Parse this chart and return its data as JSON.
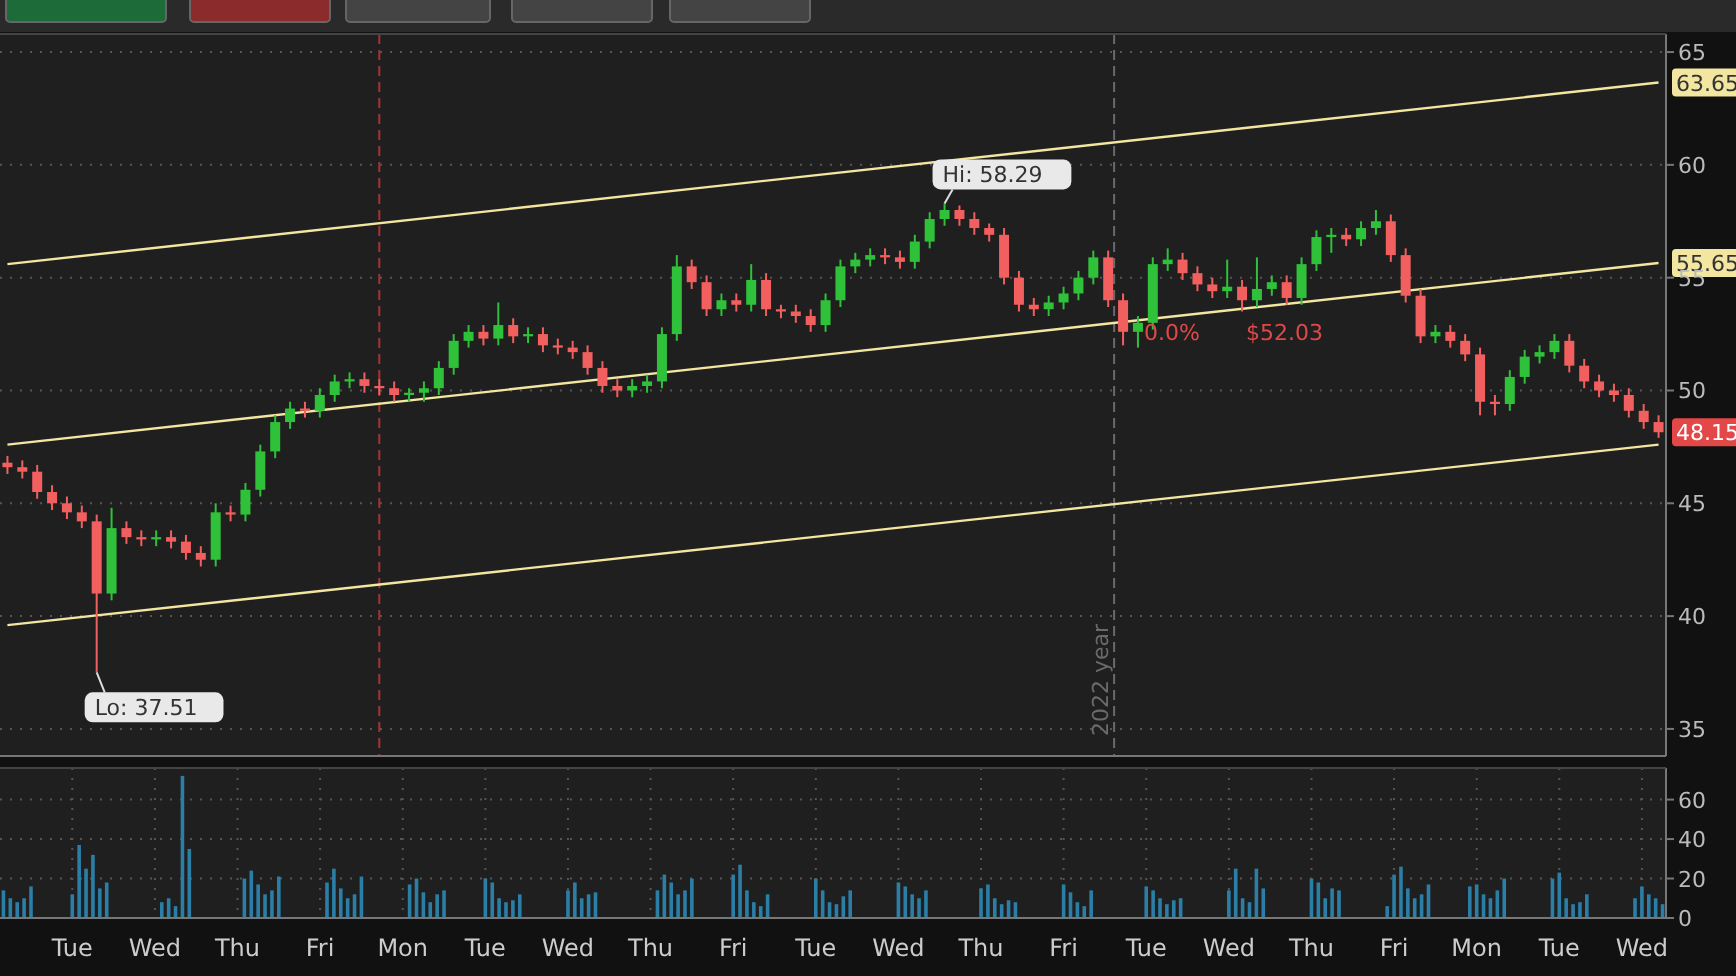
{
  "chart_data": [
    {
      "type": "candlestick",
      "categories": [
        null,
        null,
        null,
        null,
        null,
        null,
        null,
        null,
        null,
        null,
        null,
        null,
        null,
        null,
        null,
        null,
        null,
        null,
        null,
        null,
        null,
        null,
        null,
        null,
        null,
        null,
        null,
        null,
        null,
        null,
        null,
        null,
        null,
        null,
        null,
        null,
        null,
        null,
        null,
        null,
        null,
        null,
        null,
        null,
        null,
        null,
        null,
        null,
        null,
        null,
        null,
        null,
        null,
        null,
        null,
        null,
        null,
        null,
        null,
        null,
        null,
        null,
        null,
        null,
        null,
        null,
        null,
        null,
        null,
        null,
        null,
        null,
        null,
        null,
        null,
        null,
        null,
        null,
        null,
        null,
        null,
        null,
        null,
        null,
        null,
        null,
        null,
        null,
        null,
        null,
        null,
        null,
        null,
        null,
        null,
        null,
        null,
        null,
        null,
        null,
        null,
        null,
        null,
        null,
        null,
        null,
        null,
        null,
        null,
        null,
        null,
        null
      ],
      "ohlc": [
        [
          46.8,
          47.1,
          46.3,
          46.6
        ],
        [
          46.6,
          46.9,
          46.1,
          46.4
        ],
        [
          46.4,
          46.7,
          45.2,
          45.5
        ],
        [
          45.5,
          45.8,
          44.7,
          45.0
        ],
        [
          45.0,
          45.3,
          44.3,
          44.6
        ],
        [
          44.6,
          44.9,
          43.9,
          44.2
        ],
        [
          44.2,
          44.5,
          37.51,
          41.0
        ],
        [
          41.0,
          44.8,
          40.7,
          43.9
        ],
        [
          43.9,
          44.2,
          43.2,
          43.5
        ],
        [
          43.5,
          43.8,
          43.1,
          43.4
        ],
        [
          43.4,
          43.8,
          43.1,
          43.5
        ],
        [
          43.5,
          43.8,
          43.0,
          43.3
        ],
        [
          43.3,
          43.6,
          42.5,
          42.8
        ],
        [
          42.8,
          43.1,
          42.2,
          42.5
        ],
        [
          42.5,
          45.0,
          42.2,
          44.6
        ],
        [
          44.6,
          44.9,
          44.2,
          44.5
        ],
        [
          44.5,
          45.9,
          44.2,
          45.6
        ],
        [
          45.6,
          47.6,
          45.3,
          47.3
        ],
        [
          47.3,
          48.9,
          47.0,
          48.6
        ],
        [
          48.6,
          49.5,
          48.3,
          49.2
        ],
        [
          49.2,
          49.5,
          48.8,
          49.1
        ],
        [
          49.1,
          50.1,
          48.8,
          49.8
        ],
        [
          49.8,
          50.7,
          49.5,
          50.4
        ],
        [
          50.4,
          50.8,
          50.1,
          50.5
        ],
        [
          50.5,
          50.8,
          49.9,
          50.2
        ],
        [
          50.2,
          50.5,
          49.8,
          50.1
        ],
        [
          50.1,
          50.4,
          49.5,
          49.8
        ],
        [
          49.8,
          50.1,
          49.5,
          49.9
        ],
        [
          49.9,
          50.4,
          49.5,
          50.1
        ],
        [
          50.1,
          51.3,
          49.8,
          51.0
        ],
        [
          51.0,
          52.5,
          50.7,
          52.2
        ],
        [
          52.2,
          52.9,
          51.9,
          52.6
        ],
        [
          52.6,
          52.9,
          52.0,
          52.3
        ],
        [
          52.3,
          53.9,
          52.0,
          52.9
        ],
        [
          52.9,
          53.2,
          52.1,
          52.4
        ],
        [
          52.4,
          52.8,
          52.1,
          52.5
        ],
        [
          52.5,
          52.8,
          51.7,
          52.0
        ],
        [
          52.0,
          52.3,
          51.6,
          51.9
        ],
        [
          51.9,
          52.2,
          51.4,
          51.7
        ],
        [
          51.7,
          52.0,
          50.7,
          51.0
        ],
        [
          51.0,
          51.3,
          49.9,
          50.2
        ],
        [
          50.2,
          50.5,
          49.7,
          50.0
        ],
        [
          50.0,
          50.5,
          49.7,
          50.2
        ],
        [
          50.2,
          50.7,
          49.9,
          50.4
        ],
        [
          50.4,
          52.8,
          50.1,
          52.5
        ],
        [
          52.5,
          56.0,
          52.2,
          55.5
        ],
        [
          55.5,
          55.8,
          54.5,
          54.8
        ],
        [
          54.8,
          55.1,
          53.3,
          53.6
        ],
        [
          53.6,
          54.3,
          53.3,
          54.0
        ],
        [
          54.0,
          54.3,
          53.5,
          53.8
        ],
        [
          53.8,
          55.6,
          53.5,
          54.9
        ],
        [
          54.9,
          55.2,
          53.3,
          53.6
        ],
        [
          53.6,
          53.8,
          53.2,
          53.5
        ],
        [
          53.5,
          53.8,
          53.0,
          53.3
        ],
        [
          53.3,
          53.6,
          52.6,
          52.9
        ],
        [
          52.9,
          54.3,
          52.6,
          54.0
        ],
        [
          54.0,
          55.8,
          53.7,
          55.5
        ],
        [
          55.5,
          56.1,
          55.2,
          55.8
        ],
        [
          55.8,
          56.3,
          55.5,
          56.0
        ],
        [
          56.0,
          56.3,
          55.6,
          55.9
        ],
        [
          55.9,
          56.2,
          55.4,
          55.7
        ],
        [
          55.7,
          56.9,
          55.4,
          56.6
        ],
        [
          56.6,
          57.9,
          56.3,
          57.6
        ],
        [
          57.6,
          58.29,
          57.3,
          58.0
        ],
        [
          58.0,
          58.2,
          57.3,
          57.6
        ],
        [
          57.6,
          57.9,
          56.9,
          57.2
        ],
        [
          57.2,
          57.4,
          56.6,
          56.9
        ],
        [
          56.9,
          57.2,
          54.7,
          55.0
        ],
        [
          55.0,
          55.3,
          53.5,
          53.8
        ],
        [
          53.8,
          54.1,
          53.3,
          53.6
        ],
        [
          53.6,
          54.2,
          53.3,
          53.9
        ],
        [
          53.9,
          54.6,
          53.6,
          54.3
        ],
        [
          54.3,
          55.3,
          54.0,
          55.0
        ],
        [
          55.0,
          56.2,
          54.7,
          55.9
        ],
        [
          55.9,
          56.2,
          53.7,
          54.0
        ],
        [
          54.0,
          54.3,
          52.0,
          52.6
        ],
        [
          52.6,
          53.3,
          51.9,
          53.0
        ],
        [
          53.0,
          55.9,
          52.7,
          55.6
        ],
        [
          55.6,
          56.3,
          55.3,
          55.8
        ],
        [
          55.8,
          56.1,
          54.9,
          55.2
        ],
        [
          55.2,
          55.5,
          54.4,
          54.7
        ],
        [
          54.7,
          55.0,
          54.1,
          54.4
        ],
        [
          54.4,
          55.8,
          54.1,
          54.6
        ],
        [
          54.6,
          54.9,
          53.5,
          54.0
        ],
        [
          54.0,
          55.9,
          53.7,
          54.5
        ],
        [
          54.5,
          55.1,
          54.2,
          54.8
        ],
        [
          54.8,
          55.1,
          53.8,
          54.1
        ],
        [
          54.1,
          55.9,
          53.8,
          55.6
        ],
        [
          55.6,
          57.1,
          55.3,
          56.8
        ],
        [
          56.8,
          57.2,
          56.1,
          56.9
        ],
        [
          56.9,
          57.2,
          56.4,
          56.7
        ],
        [
          56.7,
          57.5,
          56.4,
          57.2
        ],
        [
          57.2,
          58.0,
          56.9,
          57.5
        ],
        [
          57.5,
          57.8,
          55.7,
          56.0
        ],
        [
          56.0,
          56.3,
          53.9,
          54.2
        ],
        [
          54.2,
          54.5,
          52.1,
          52.4
        ],
        [
          52.4,
          52.9,
          52.1,
          52.6
        ],
        [
          52.6,
          52.9,
          51.9,
          52.2
        ],
        [
          52.2,
          52.5,
          51.3,
          51.6
        ],
        [
          51.6,
          51.9,
          48.9,
          49.5
        ],
        [
          49.5,
          49.8,
          48.9,
          49.4
        ],
        [
          49.4,
          50.9,
          49.1,
          50.6
        ],
        [
          50.6,
          51.8,
          50.3,
          51.5
        ],
        [
          51.5,
          52.0,
          51.2,
          51.7
        ],
        [
          51.7,
          52.5,
          51.4,
          52.2
        ],
        [
          52.2,
          52.5,
          50.8,
          51.1
        ],
        [
          51.1,
          51.4,
          50.1,
          50.4
        ],
        [
          50.4,
          50.7,
          49.7,
          50.0
        ],
        [
          50.0,
          50.3,
          49.5,
          49.8
        ],
        [
          49.8,
          50.1,
          48.8,
          49.1
        ],
        [
          49.1,
          49.4,
          48.3,
          48.6
        ],
        [
          48.6,
          48.9,
          47.9,
          48.15
        ]
      ],
      "series": [
        {
          "type": "line",
          "color": "#f3e6a0",
          "values": [
            55.6,
            null,
            null,
            null,
            null,
            null,
            null,
            null,
            null,
            null,
            null,
            null,
            null,
            null,
            null,
            null,
            null,
            null,
            null,
            null,
            null,
            null,
            null,
            null,
            null,
            null,
            null,
            null,
            null,
            null,
            null,
            null,
            null,
            null,
            null,
            null,
            null,
            null,
            null,
            null,
            null,
            null,
            null,
            null,
            null,
            null,
            null,
            null,
            null,
            null,
            null,
            null,
            null,
            null,
            null,
            null,
            null,
            null,
            null,
            null,
            null,
            null,
            null,
            null,
            null,
            null,
            null,
            null,
            null,
            null,
            null,
            null,
            null,
            null,
            null,
            null,
            null,
            null,
            null,
            null,
            null,
            null,
            null,
            null,
            null,
            null,
            null,
            null,
            null,
            null,
            null,
            null,
            null,
            null,
            null,
            null,
            null,
            null,
            null,
            null,
            null,
            null,
            null,
            null,
            null,
            null,
            null,
            null,
            null,
            null,
            null,
            63.65
          ]
        },
        {
          "type": "line",
          "color": "#f3e6a0",
          "values": [
            47.6,
            null,
            null,
            null,
            null,
            null,
            null,
            null,
            null,
            null,
            null,
            null,
            null,
            null,
            null,
            null,
            null,
            null,
            null,
            null,
            null,
            null,
            null,
            null,
            null,
            null,
            null,
            null,
            null,
            null,
            null,
            null,
            null,
            null,
            null,
            null,
            null,
            null,
            null,
            null,
            null,
            null,
            null,
            null,
            null,
            null,
            null,
            null,
            null,
            null,
            null,
            null,
            null,
            null,
            null,
            null,
            null,
            null,
            null,
            null,
            null,
            null,
            null,
            null,
            null,
            null,
            null,
            null,
            null,
            null,
            null,
            null,
            null,
            null,
            null,
            null,
            null,
            null,
            null,
            null,
            null,
            null,
            null,
            null,
            null,
            null,
            null,
            null,
            null,
            null,
            null,
            null,
            null,
            null,
            null,
            null,
            null,
            null,
            null,
            null,
            null,
            null,
            null,
            null,
            null,
            null,
            null,
            null,
            null,
            null,
            null,
            55.65
          ]
        },
        {
          "type": "line",
          "color": "#f3e6a0",
          "values": [
            39.6,
            null,
            null,
            null,
            null,
            null,
            null,
            null,
            null,
            null,
            null,
            null,
            null,
            null,
            null,
            null,
            null,
            null,
            null,
            null,
            null,
            null,
            null,
            null,
            null,
            null,
            null,
            null,
            null,
            null,
            null,
            null,
            null,
            null,
            null,
            null,
            null,
            null,
            null,
            null,
            null,
            null,
            null,
            null,
            null,
            null,
            null,
            null,
            null,
            null,
            null,
            null,
            null,
            null,
            null,
            null,
            null,
            null,
            null,
            null,
            null,
            null,
            null,
            null,
            null,
            null,
            null,
            null,
            null,
            null,
            null,
            null,
            null,
            null,
            null,
            null,
            null,
            null,
            null,
            null,
            null,
            null,
            null,
            null,
            null,
            null,
            null,
            null,
            null,
            null,
            null,
            null,
            null,
            null,
            null,
            null,
            null,
            null,
            null,
            null,
            null,
            null,
            null,
            null,
            null,
            null,
            null,
            null,
            null,
            null,
            null,
            47.6
          ]
        }
      ],
      "ylim": [
        33.8,
        65.8
      ],
      "yticks": [
        35,
        40,
        45,
        50,
        55,
        60,
        65
      ],
      "grid": "y",
      "tick_labels": "y",
      "annotations": [
        "Hi: 58.29",
        "Lo: 37.51",
        "0.0%",
        "$52.03",
        {
          "text": "48.15",
          "y": 48.15
        },
        {
          "text": "63.65",
          "y": 63.65
        },
        {
          "text": "55.65",
          "y": 55.65
        },
        "2022 year"
      ]
    },
    {
      "type": "bar",
      "color": "#2b7ea6",
      "categories": [
        null,
        null,
        null,
        null,
        null,
        null,
        null,
        null,
        null,
        null,
        "Tue",
        null,
        null,
        null,
        null,
        null,
        null,
        null,
        null,
        null,
        null,
        null,
        "Wed",
        null,
        null,
        null,
        null,
        null,
        null,
        null,
        null,
        null,
        null,
        null,
        "Thu",
        null,
        null,
        null,
        null,
        null,
        null,
        null,
        null,
        null,
        null,
        null,
        "Fri",
        null,
        null,
        null,
        null,
        null,
        null,
        null,
        null,
        null,
        null,
        null,
        "Mon",
        null,
        null,
        null,
        null,
        null,
        null,
        null,
        null,
        null,
        null,
        null,
        "Tue",
        null,
        null,
        null,
        null,
        null,
        null,
        null,
        null,
        null,
        null,
        null,
        "Wed",
        null,
        null,
        null,
        null,
        null,
        null,
        null,
        null,
        null,
        null,
        null,
        "Thu",
        null,
        null,
        null,
        null,
        null,
        null,
        null,
        null,
        null,
        null,
        null,
        "Fri",
        null,
        null,
        null,
        null,
        null,
        null,
        null,
        null,
        null,
        null,
        null,
        "Tue",
        null,
        null,
        null,
        null,
        null,
        null,
        null,
        null,
        null,
        null,
        null,
        "Wed",
        null,
        null,
        null,
        null,
        null,
        null,
        null,
        null,
        null,
        null,
        null,
        "Thu",
        null,
        null,
        null,
        null,
        null,
        null,
        null,
        null,
        null,
        null,
        null,
        "Fri",
        null,
        null,
        null,
        null,
        null,
        null,
        null,
        null,
        null,
        null,
        null,
        "Tue",
        null,
        null,
        null,
        null,
        null,
        null,
        null,
        null,
        null,
        null,
        null,
        "Wed",
        null,
        null,
        null,
        null,
        null,
        null,
        null,
        null,
        null,
        null,
        null,
        "Thu",
        null,
        null,
        null,
        null,
        null,
        null,
        null,
        null,
        null,
        null,
        null,
        "Fri",
        null,
        null,
        null,
        null,
        null,
        null,
        null,
        null,
        null,
        null,
        null,
        "Mon",
        null,
        null,
        null,
        null,
        null,
        null,
        null,
        null,
        null,
        null,
        null,
        "Tue",
        null,
        null,
        null,
        null,
        null,
        null,
        null,
        null,
        null,
        null,
        null,
        "Wed",
        null,
        null,
        null
      ],
      "values": [
        14,
        10,
        8,
        10,
        16,
        null,
        null,
        null,
        null,
        null,
        12,
        37,
        25,
        32,
        15,
        18,
        null,
        null,
        null,
        null,
        null,
        null,
        null,
        8,
        10,
        6,
        72,
        35,
        null,
        null,
        null,
        null,
        null,
        null,
        null,
        20,
        24,
        17,
        12,
        14,
        21,
        null,
        null,
        null,
        null,
        null,
        null,
        18,
        25,
        15,
        10,
        12,
        21,
        null,
        null,
        null,
        null,
        null,
        null,
        17,
        20,
        13,
        8,
        12,
        14,
        null,
        null,
        null,
        null,
        null,
        20,
        18,
        10,
        8,
        9,
        12,
        null,
        null,
        null,
        null,
        null,
        null,
        14,
        18,
        10,
        12,
        13,
        null,
        null,
        null,
        null,
        null,
        null,
        null,
        null,
        14,
        22,
        18,
        12,
        14,
        20,
        null,
        null,
        null,
        null,
        null,
        22,
        27,
        14,
        8,
        6,
        12,
        null,
        null,
        null,
        null,
        null,
        null,
        20,
        14,
        8,
        7,
        11,
        14,
        null,
        null,
        null,
        null,
        null,
        null,
        18,
        16,
        12,
        10,
        14,
        null,
        null,
        null,
        null,
        null,
        null,
        null,
        15,
        17,
        10,
        7,
        9,
        8,
        null,
        null,
        null,
        null,
        null,
        null,
        17,
        13,
        8,
        6,
        14,
        null,
        null,
        null,
        null,
        null,
        null,
        null,
        16,
        14,
        10,
        7,
        9,
        10,
        null,
        null,
        null,
        null,
        null,
        null,
        14,
        25,
        10,
        8,
        25,
        15,
        null,
        null,
        null,
        null,
        null,
        null,
        20,
        18,
        10,
        15,
        14,
        null,
        null,
        null,
        null,
        null,
        null,
        6,
        22,
        26,
        15,
        10,
        12,
        17,
        null,
        null,
        null,
        null,
        null,
        16,
        17,
        12,
        10,
        14,
        20,
        null,
        null,
        null,
        null,
        null,
        null,
        20,
        23,
        10,
        7,
        8,
        12,
        null,
        null,
        null,
        null,
        null,
        null,
        10,
        16,
        12,
        10,
        7
      ],
      "ylim": [
        0,
        76
      ],
      "yticks": [
        0,
        20,
        40,
        60
      ],
      "grid": true
    }
  ]
}
